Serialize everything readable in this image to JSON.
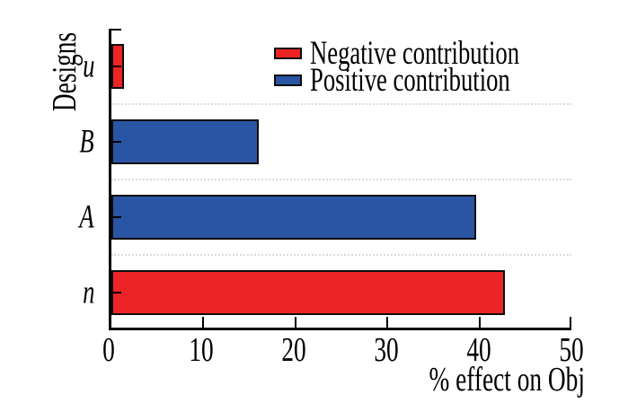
{
  "chart_data": {
    "type": "bar",
    "orientation": "horizontal",
    "xlabel": "% effect on Obj",
    "ylabel": "Designs",
    "xlim": [
      0,
      50
    ],
    "x_ticks": [
      0,
      10,
      20,
      30,
      40,
      50
    ],
    "grid": "dotted horizontal separators between category bands",
    "legend_position": "top-right-inside",
    "bars": [
      {
        "category": "u",
        "value": 1.4,
        "series": "Negative contribution",
        "series_key": "negative"
      },
      {
        "category": "B",
        "value": 16.0,
        "series": "Positive contribution",
        "series_key": "positive"
      },
      {
        "category": "A",
        "value": 39.6,
        "series": "Positive contribution",
        "series_key": "positive"
      },
      {
        "category": "n",
        "value": 42.8,
        "series": "Negative contribution",
        "series_key": "negative"
      }
    ]
  },
  "legend": {
    "items": [
      {
        "label": "Negative contribution",
        "color_key": "negative"
      },
      {
        "label": "Positive contribution",
        "color_key": "positive"
      }
    ]
  },
  "colors": {
    "negative": "#ec2426",
    "positive": "#2a54a4",
    "bar_border": "#0d0d0d",
    "axis": "#000000",
    "gridline": "#dcdcdc",
    "background": "#ffffff",
    "text": "#000000"
  }
}
